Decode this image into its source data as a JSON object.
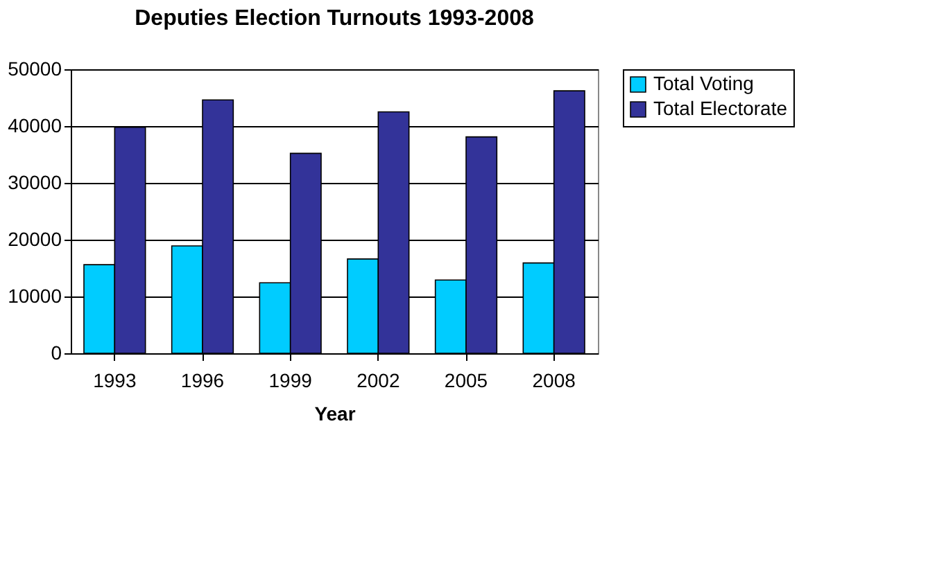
{
  "chart_data": {
    "type": "bar",
    "title": "Deputies Election Turnouts 1993-2008",
    "xlabel": "Year",
    "categories": [
      "1993",
      "1996",
      "1999",
      "2002",
      "2005",
      "2008"
    ],
    "series": [
      {
        "name": "Total Voting",
        "color": "#00ccff",
        "values": [
          15600,
          18900,
          12400,
          16600,
          12900,
          15900
        ]
      },
      {
        "name": "Total Electorate",
        "color": "#333399",
        "values": [
          39800,
          44600,
          35200,
          42500,
          38100,
          46200
        ]
      }
    ],
    "ylim": [
      0,
      50000
    ],
    "yticks": [
      0,
      10000,
      20000,
      30000,
      40000,
      50000
    ],
    "grid": "y",
    "legend": "right"
  }
}
